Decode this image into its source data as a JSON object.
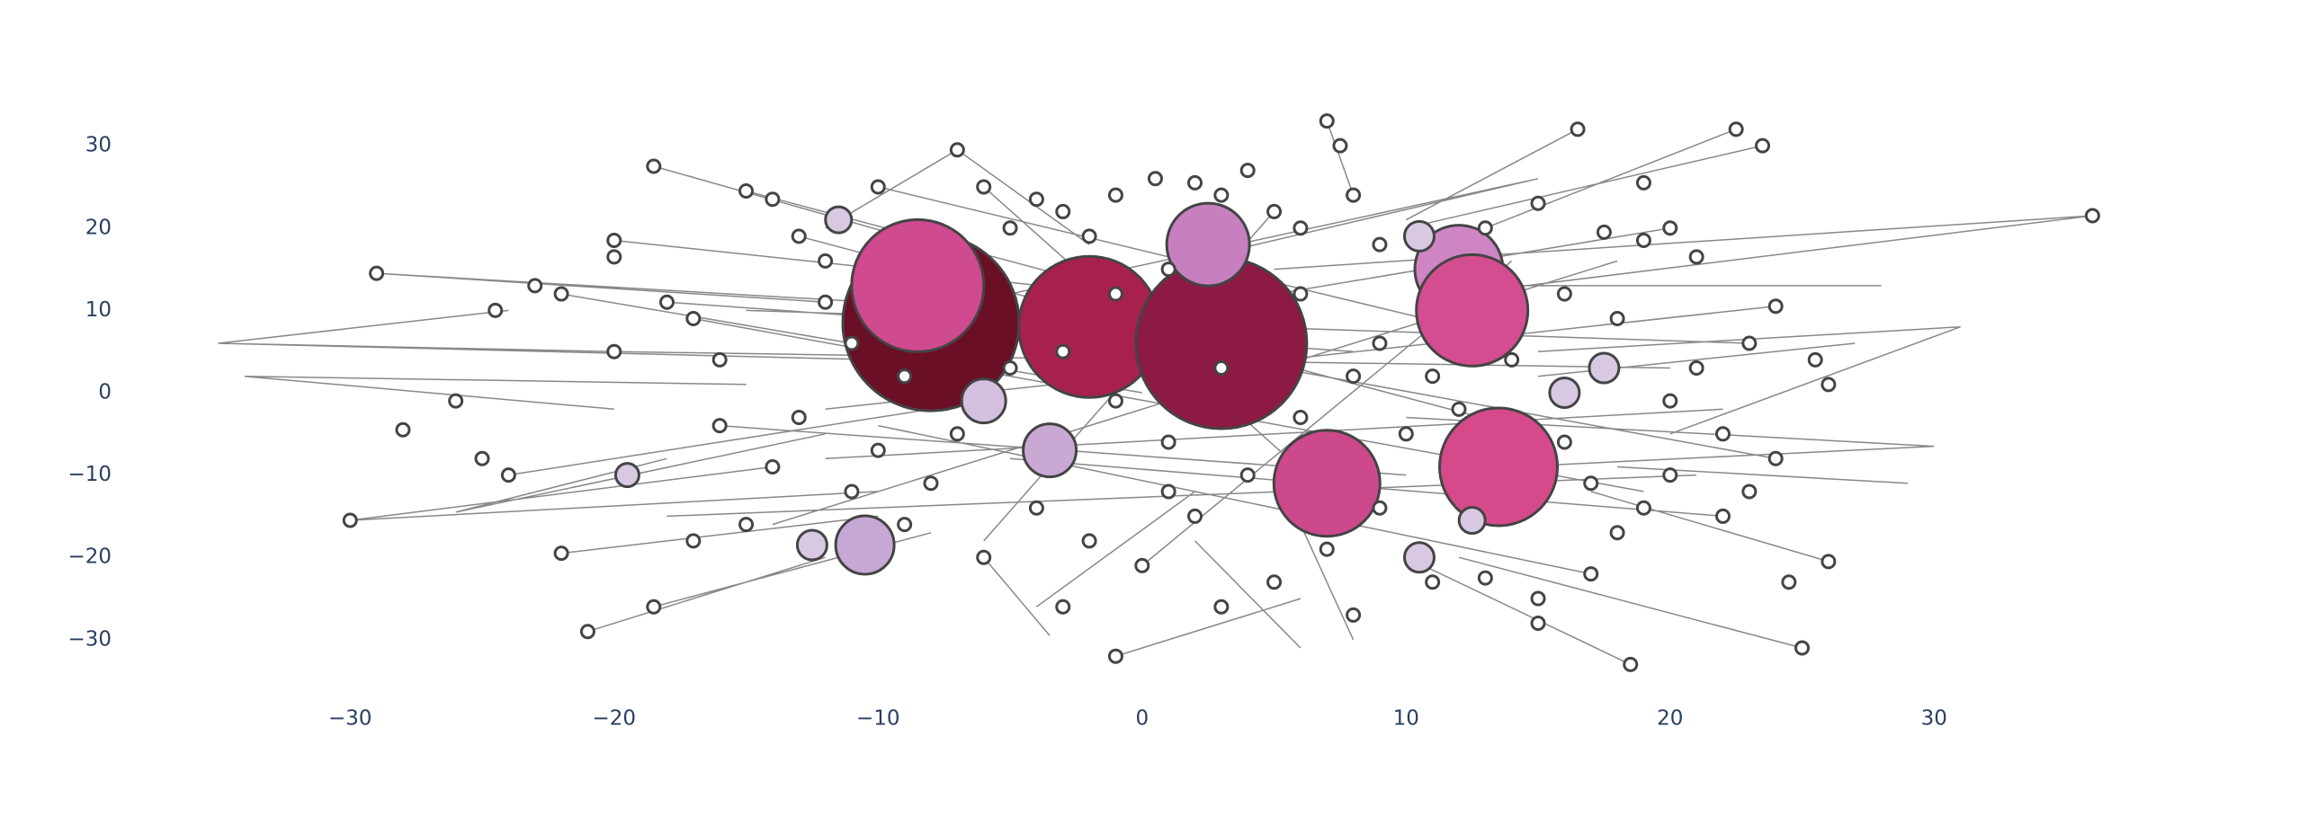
{
  "chart_data": {
    "type": "network",
    "xlim": [
      -38.8,
      39.7
    ],
    "ylim": [
      -37,
      37
    ],
    "xticks": [
      {
        "value": -30,
        "label": "−30"
      },
      {
        "value": -20,
        "label": "−20"
      },
      {
        "value": -10,
        "label": "−10"
      },
      0,
      10,
      20,
      30
    ],
    "yticks": [
      {
        "value": -30,
        "label": "−30"
      },
      {
        "value": -20,
        "label": "−20"
      },
      {
        "value": -10,
        "label": "−10"
      },
      0,
      10,
      20,
      30
    ],
    "grid": false,
    "edges": {
      "color": "#888888",
      "width": 1.5,
      "x": [
        -35,
        -24,
        null,
        -35,
        -10,
        null,
        -35,
        -20,
        null,
        -30,
        -14,
        null,
        -30,
        -10,
        null,
        -29,
        -12,
        null,
        -29,
        -5,
        null,
        36,
        12,
        null,
        36,
        5,
        null,
        31,
        15,
        null,
        31,
        20,
        null,
        30,
        14,
        null,
        30,
        10,
        null,
        29,
        18,
        null,
        22.5,
        13,
        null,
        23.5,
        10,
        null,
        16.5,
        10,
        null,
        7,
        8,
        null,
        18.5,
        10,
        null,
        25,
        12,
        null,
        26,
        17,
        null,
        -1,
        6,
        null,
        -21,
        -12,
        null,
        -18.5,
        -8,
        null,
        -18.5,
        -8,
        null,
        -7,
        -2,
        null,
        -7,
        -12,
        null,
        6,
        2,
        null,
        -3.5,
        -6,
        null,
        -34,
        -15,
        null,
        -34,
        -20,
        null,
        -26,
        -12,
        null,
        -26,
        -18,
        null,
        28,
        14,
        null,
        27,
        15,
        null,
        -24,
        -8,
        null,
        -22,
        -10,
        null,
        15,
        3,
        null,
        15,
        -5,
        null,
        -4,
        2,
        null,
        8,
        6,
        null,
        -20,
        5,
        null,
        -18,
        8,
        null,
        -16,
        10,
        null,
        -15,
        2,
        null,
        -13,
        14,
        null,
        -10,
        12,
        null,
        20,
        -8,
        null,
        24,
        -12,
        null,
        22,
        -5,
        null,
        23,
        -15,
        null,
        21,
        -18,
        null,
        17,
        -10,
        null,
        5,
        -6,
        null,
        -6,
        8,
        null,
        -20,
        20,
        null,
        -17,
        19,
        null,
        -14,
        18,
        null,
        -12,
        22,
        null,
        0,
        14,
        null,
        -22,
        0,
        null,
        24,
        0
      ],
      "y": [
        6,
        10,
        null,
        6,
        4,
        null,
        6,
        5,
        null,
        -15.5,
        -9,
        null,
        -15.5,
        -12,
        null,
        14.5,
        11,
        null,
        14.5,
        10,
        null,
        21.5,
        12,
        null,
        21.5,
        15,
        null,
        8,
        5,
        null,
        8,
        -5,
        null,
        -6.5,
        -9,
        null,
        -6.5,
        -3,
        null,
        -11,
        -9,
        null,
        32,
        20,
        null,
        30,
        20,
        null,
        32,
        21,
        null,
        33,
        24,
        null,
        -33,
        -20,
        null,
        -31,
        -20,
        null,
        -20.5,
        -12,
        null,
        -32,
        -25,
        null,
        -29,
        -20,
        null,
        -26,
        -17,
        null,
        27.5,
        18,
        null,
        29.5,
        18,
        null,
        29.5,
        20,
        null,
        -31,
        -18,
        null,
        -29.5,
        -20,
        null,
        2,
        1,
        null,
        2,
        -2,
        null,
        -14.5,
        -5,
        null,
        -14.5,
        -8,
        null,
        13,
        13,
        null,
        6,
        2,
        null,
        -10,
        -2,
        null,
        -19.5,
        -15,
        null,
        26,
        17,
        null,
        26,
        12,
        null,
        -26,
        -12,
        null,
        -30,
        -16,
        null,
        18.5,
        10,
        null,
        11,
        5,
        null,
        -4,
        -10,
        null,
        24.5,
        10,
        null,
        19,
        -4,
        null,
        25,
        8,
        null,
        20,
        5,
        null,
        10.5,
        -2,
        null,
        -15,
        -8,
        null,
        6,
        10,
        null,
        -10,
        -15,
        null,
        -22,
        -4,
        null,
        22,
        -18,
        null,
        25,
        -15,
        null,
        5,
        3,
        null,
        9,
        -12,
        null,
        -16,
        16,
        null,
        -8,
        -2,
        null,
        -21,
        16,
        null,
        12,
        0,
        null,
        -8,
        6
      ]
    },
    "nodes": [
      {
        "colors": [
          "#6b0f26",
          "#cf4a8f",
          "#a8214c",
          "#8c1a45",
          "#c77fc0",
          "#cf85c4",
          "#d44d90",
          "#d64a8c",
          "#cc4a8c",
          "#c6a8d4",
          "#d4bfdf",
          "#c9a8d4",
          "#d8c8e2",
          "#d8c8e2",
          "#d8c8e2",
          "#d8c8e2",
          "#d8c8e2",
          "#d8c8e2",
          "#d8c8e2",
          "#d8c8e2"
        ],
        "line_color": "#444444",
        "x": [
          -8,
          -8.5,
          -2,
          3,
          2.5,
          12,
          12.5,
          13.5,
          7,
          -10.5,
          -6,
          -3.5,
          -12.5,
          10.5,
          17.5,
          16,
          -19.5,
          -11.5,
          10.5,
          12.5
        ],
        "y": [
          8.5,
          13,
          8,
          6,
          18,
          15,
          10,
          -9,
          -11,
          -18.5,
          -1,
          -7,
          -18.5,
          -20,
          3,
          0,
          -10,
          21,
          19,
          -15.5
        ],
        "sizes": [
          196,
          147,
          157,
          190,
          92,
          98,
          124,
          131,
          118,
          65,
          49,
          59,
          33,
          33,
          33,
          33,
          26,
          29,
          33,
          29
        ]
      },
      {
        "color": "#ffffff",
        "line_color": "#444444",
        "marker_size": 14,
        "x": [
          -29,
          -30,
          -18.5,
          -7,
          7,
          7.5,
          16.5,
          22.5,
          23.5,
          36,
          18.5,
          25,
          26,
          24.5,
          -21,
          -18.5,
          -1,
          -28,
          -26,
          -24.5,
          -22,
          -24,
          -25,
          -23,
          -22,
          -20,
          -20,
          -20,
          -18,
          -17,
          -16,
          -15,
          -14,
          -13,
          -12,
          -14,
          -15,
          -17,
          -11,
          -13,
          -10,
          -9,
          -6,
          -5,
          -4,
          -3,
          -2,
          -1,
          0.5,
          2,
          3,
          4,
          5,
          6,
          8,
          9,
          1,
          -1,
          -3,
          -5,
          -7,
          -4,
          -2,
          0,
          2,
          4,
          1,
          6,
          8,
          9,
          6,
          -9,
          -11,
          -12,
          -10,
          -6,
          -3,
          3,
          5,
          8,
          7,
          11,
          13,
          15,
          15,
          17,
          19,
          20,
          22,
          23,
          24,
          22,
          20,
          21,
          23,
          24,
          25.5,
          26,
          21,
          19,
          20,
          17.5,
          19,
          15,
          13,
          16,
          18,
          14,
          11,
          10,
          12,
          16,
          18,
          17,
          9,
          3,
          -1,
          1,
          -8,
          -16
        ],
        "y": [
          14.5,
          -15.5,
          27.5,
          29.5,
          33,
          30,
          32,
          32,
          30,
          21.5,
          -33,
          -31,
          -20.5,
          -23,
          -29,
          -26,
          -32,
          -4.5,
          -1,
          10,
          -19.5,
          -10,
          -8,
          13,
          12,
          5,
          18.5,
          16.5,
          11,
          9,
          -4,
          24.5,
          23.5,
          19,
          16,
          -9,
          -16,
          -18,
          -12,
          -3,
          25,
          -16,
          25,
          20,
          23.5,
          22,
          19,
          24,
          26,
          25.5,
          24,
          27,
          22,
          20,
          24,
          18,
          15,
          12,
          5,
          3,
          -5,
          -14,
          -18,
          -21,
          -15,
          -10,
          -6,
          -3,
          2,
          6,
          12,
          2,
          6,
          11,
          -7,
          -20,
          -26,
          -26,
          -23,
          -27,
          -19,
          -23,
          -22.5,
          -28,
          -25,
          -22,
          -14,
          -10,
          -15,
          -12,
          -8,
          -5,
          -1,
          3,
          6,
          10.5,
          4,
          1,
          16.5,
          18.5,
          20,
          19.5,
          25.5,
          23,
          20,
          12,
          9,
          4,
          2,
          -5,
          -2,
          -6,
          -17,
          -11,
          -14,
          3,
          -1,
          -12,
          -11,
          4
        ]
      }
    ]
  }
}
